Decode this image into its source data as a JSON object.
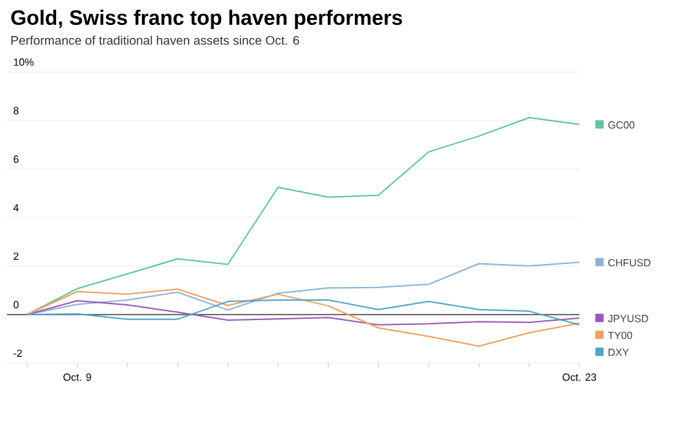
{
  "chart_data": {
    "type": "line",
    "title": "Gold, Swiss franc top haven performers",
    "subtitle": "Performance of traditional haven assets since Oct. 6",
    "categories": [
      null,
      "Oct. 9",
      null,
      null,
      null,
      null,
      null,
      null,
      null,
      null,
      null,
      "Oct. 23"
    ],
    "series": [
      {
        "name": "GC00",
        "color": "#62c2a2",
        "values": [
          0,
          1.07,
          1.68,
          2.3,
          2.07,
          5.25,
          4.84,
          4.92,
          6.71,
          7.36,
          8.12,
          7.84
        ]
      },
      {
        "name": "CHFUSD",
        "color": "#8db4d8",
        "values": [
          0,
          0.42,
          0.6,
          0.92,
          0.19,
          0.88,
          1.1,
          1.12,
          1.25,
          2.1,
          2.01,
          2.16
        ]
      },
      {
        "name": "JPYUSD",
        "color": "#9b59b6",
        "values": [
          0,
          0.57,
          0.4,
          0.1,
          -0.23,
          -0.18,
          -0.12,
          -0.42,
          -0.38,
          -0.29,
          -0.32,
          -0.14
        ]
      },
      {
        "name": "TY00",
        "color": "#f0a060",
        "values": [
          0,
          0.95,
          0.84,
          1.05,
          0.38,
          0.84,
          0.36,
          -0.55,
          -0.9,
          -1.3,
          -0.75,
          -0.36
        ]
      },
      {
        "name": "DXY",
        "color": "#4ea6c6",
        "values": [
          0,
          0.03,
          -0.19,
          -0.19,
          0.54,
          0.6,
          0.6,
          0.21,
          0.54,
          0.21,
          0.14,
          -0.42
        ]
      }
    ],
    "ylim": [
      -2,
      10
    ],
    "yticks": [
      -2,
      0,
      2,
      4,
      6,
      8,
      {
        "value": 10,
        "label": "10%"
      }
    ],
    "ref_lines": [
      {
        "axis": "y",
        "value": 0,
        "color": "#444444"
      }
    ],
    "grid": "y",
    "legend": "right",
    "marker": "none",
    "line_style": "solid"
  }
}
